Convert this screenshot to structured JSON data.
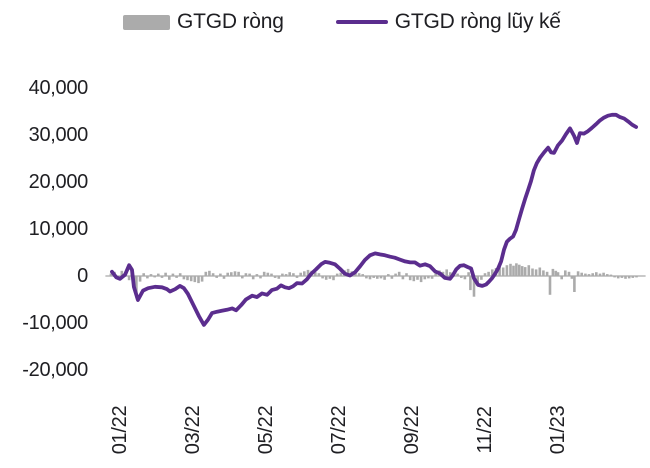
{
  "legend": {
    "bar_label": "GTGD ròng",
    "line_label": "GTGD ròng lũy kế"
  },
  "colors": {
    "bar": "#ABABAB",
    "line": "#5B2D8E",
    "zero_line": "#C9C9C9",
    "text": "#1F1F23"
  },
  "chart_data": {
    "type": "combo-bar-line",
    "title": "",
    "xlabel": "",
    "ylabel": "",
    "grid": false,
    "legend_position": "top",
    "ylim": [
      -20000,
      40000
    ],
    "y_ticks": [
      {
        "value": 40000,
        "label": "40,000"
      },
      {
        "value": 30000,
        "label": "30,000"
      },
      {
        "value": 20000,
        "label": "20,000"
      },
      {
        "value": 10000,
        "label": "10,000"
      },
      {
        "value": 0,
        "label": "0"
      },
      {
        "value": -10000,
        "label": "-10,000"
      },
      {
        "value": -20000,
        "label": "-20,000"
      }
    ],
    "x_ticks": [
      {
        "pos": 0,
        "label": "01/22"
      },
      {
        "pos": 2,
        "label": "03/22"
      },
      {
        "pos": 4,
        "label": "05/22"
      },
      {
        "pos": 6,
        "label": "07/22"
      },
      {
        "pos": 8,
        "label": "09/22"
      },
      {
        "pos": 10,
        "label": "11/22"
      },
      {
        "pos": 12,
        "label": "01/23"
      }
    ],
    "x_encoding": "months elapsed since 01/2022 tick",
    "xlim": [
      -0.4,
      14.4
    ],
    "series": [
      {
        "name": "GTGD ròng",
        "type": "bar",
        "color": "#ABABAB",
        "points": [
          [
            -0.25,
            500
          ],
          [
            -0.15,
            900
          ],
          [
            -0.05,
            -700
          ],
          [
            0.05,
            1100
          ],
          [
            0.15,
            800
          ],
          [
            0.25,
            -900
          ],
          [
            0.32,
            1500
          ],
          [
            0.38,
            -2600
          ],
          [
            0.45,
            -4600
          ],
          [
            0.55,
            -1200
          ],
          [
            0.65,
            600
          ],
          [
            0.75,
            -500
          ],
          [
            0.85,
            400
          ],
          [
            0.95,
            -300
          ],
          [
            1.05,
            500
          ],
          [
            1.15,
            -400
          ],
          [
            1.25,
            700
          ],
          [
            1.35,
            -800
          ],
          [
            1.45,
            500
          ],
          [
            1.55,
            -400
          ],
          [
            1.65,
            600
          ],
          [
            1.75,
            -700
          ],
          [
            1.85,
            -900
          ],
          [
            1.95,
            -1100
          ],
          [
            2.05,
            -1300
          ],
          [
            2.15,
            -1500
          ],
          [
            2.25,
            -1200
          ],
          [
            2.35,
            900
          ],
          [
            2.45,
            1100
          ],
          [
            2.55,
            600
          ],
          [
            2.65,
            -400
          ],
          [
            2.75,
            500
          ],
          [
            2.85,
            -600
          ],
          [
            2.95,
            700
          ],
          [
            3.05,
            800
          ],
          [
            3.15,
            1000
          ],
          [
            3.25,
            900
          ],
          [
            3.35,
            -500
          ],
          [
            3.45,
            600
          ],
          [
            3.55,
            500
          ],
          [
            3.65,
            -700
          ],
          [
            3.75,
            400
          ],
          [
            3.85,
            -500
          ],
          [
            3.95,
            900
          ],
          [
            4.05,
            700
          ],
          [
            4.15,
            500
          ],
          [
            4.25,
            -400
          ],
          [
            4.35,
            -600
          ],
          [
            4.45,
            500
          ],
          [
            4.55,
            400
          ],
          [
            4.65,
            800
          ],
          [
            4.75,
            600
          ],
          [
            4.85,
            -400
          ],
          [
            4.95,
            700
          ],
          [
            5.05,
            1000
          ],
          [
            5.15,
            1300
          ],
          [
            5.25,
            1100
          ],
          [
            5.35,
            800
          ],
          [
            5.45,
            600
          ],
          [
            5.55,
            -500
          ],
          [
            5.65,
            -800
          ],
          [
            5.75,
            -600
          ],
          [
            5.85,
            -900
          ],
          [
            5.95,
            500
          ],
          [
            6.05,
            700
          ],
          [
            6.15,
            1200
          ],
          [
            6.25,
            1500
          ],
          [
            6.35,
            1000
          ],
          [
            6.45,
            800
          ],
          [
            6.55,
            600
          ],
          [
            6.65,
            400
          ],
          [
            6.75,
            -500
          ],
          [
            6.85,
            -700
          ],
          [
            6.95,
            -400
          ],
          [
            7.05,
            -600
          ],
          [
            7.15,
            -500
          ],
          [
            7.25,
            -800
          ],
          [
            7.35,
            400
          ],
          [
            7.45,
            -600
          ],
          [
            7.55,
            500
          ],
          [
            7.65,
            900
          ],
          [
            7.75,
            -700
          ],
          [
            7.85,
            600
          ],
          [
            7.95,
            -900
          ],
          [
            8.05,
            -1100
          ],
          [
            8.15,
            -800
          ],
          [
            8.25,
            -1300
          ],
          [
            8.35,
            -700
          ],
          [
            8.45,
            -500
          ],
          [
            8.55,
            -600
          ],
          [
            8.65,
            700
          ],
          [
            8.75,
            1200
          ],
          [
            8.85,
            900
          ],
          [
            8.95,
            1400
          ],
          [
            9.05,
            800
          ],
          [
            9.15,
            600
          ],
          [
            9.25,
            500
          ],
          [
            9.35,
            -400
          ],
          [
            9.45,
            -700
          ],
          [
            9.55,
            800
          ],
          [
            9.6,
            -3000
          ],
          [
            9.7,
            -4400
          ],
          [
            9.8,
            -1500
          ],
          [
            9.9,
            -800
          ],
          [
            10.0,
            600
          ],
          [
            10.1,
            900
          ],
          [
            10.2,
            1400
          ],
          [
            10.3,
            1700
          ],
          [
            10.4,
            2000
          ],
          [
            10.5,
            1800
          ],
          [
            10.6,
            2300
          ],
          [
            10.7,
            2600
          ],
          [
            10.78,
            2200
          ],
          [
            10.86,
            2700
          ],
          [
            10.94,
            2400
          ],
          [
            11.02,
            2100
          ],
          [
            11.1,
            1900
          ],
          [
            11.2,
            2300
          ],
          [
            11.3,
            1600
          ],
          [
            11.4,
            1400
          ],
          [
            11.5,
            1800
          ],
          [
            11.6,
            1200
          ],
          [
            11.7,
            900
          ],
          [
            11.78,
            -4000
          ],
          [
            11.86,
            1500
          ],
          [
            11.94,
            1100
          ],
          [
            12.0,
            800
          ],
          [
            12.1,
            -700
          ],
          [
            12.2,
            1200
          ],
          [
            12.3,
            900
          ],
          [
            12.38,
            -600
          ],
          [
            12.45,
            -3400
          ],
          [
            12.55,
            1000
          ],
          [
            12.65,
            700
          ],
          [
            12.75,
            500
          ],
          [
            12.85,
            400
          ],
          [
            12.95,
            600
          ],
          [
            13.05,
            800
          ],
          [
            13.15,
            500
          ],
          [
            13.25,
            700
          ],
          [
            13.35,
            400
          ],
          [
            13.45,
            300
          ],
          [
            13.55,
            -300
          ],
          [
            13.65,
            -500
          ],
          [
            13.75,
            -400
          ],
          [
            13.85,
            -600
          ],
          [
            13.95,
            -500
          ],
          [
            14.05,
            -400
          ],
          [
            14.15,
            -300
          ]
        ]
      },
      {
        "name": "GTGD ròng lũy kế",
        "type": "line",
        "color": "#5B2D8E",
        "points": [
          [
            -0.22,
            900
          ],
          [
            -0.1,
            -300
          ],
          [
            0.0,
            -600
          ],
          [
            0.14,
            300
          ],
          [
            0.25,
            2300
          ],
          [
            0.33,
            1300
          ],
          [
            0.38,
            -2300
          ],
          [
            0.49,
            -5100
          ],
          [
            0.63,
            -3100
          ],
          [
            0.77,
            -2600
          ],
          [
            0.96,
            -2300
          ],
          [
            1.15,
            -2400
          ],
          [
            1.29,
            -2800
          ],
          [
            1.37,
            -3300
          ],
          [
            1.51,
            -2800
          ],
          [
            1.64,
            -2100
          ],
          [
            1.75,
            -2600
          ],
          [
            1.86,
            -3800
          ],
          [
            2.0,
            -6000
          ],
          [
            2.16,
            -8500
          ],
          [
            2.3,
            -10400
          ],
          [
            2.41,
            -9300
          ],
          [
            2.52,
            -7900
          ],
          [
            2.66,
            -7600
          ],
          [
            2.79,
            -7400
          ],
          [
            2.93,
            -7200
          ],
          [
            3.07,
            -6900
          ],
          [
            3.18,
            -7300
          ],
          [
            3.32,
            -6200
          ],
          [
            3.45,
            -5000
          ],
          [
            3.62,
            -4200
          ],
          [
            3.75,
            -4500
          ],
          [
            3.89,
            -3700
          ],
          [
            4.03,
            -4000
          ],
          [
            4.16,
            -3000
          ],
          [
            4.3,
            -2700
          ],
          [
            4.41,
            -2000
          ],
          [
            4.52,
            -2400
          ],
          [
            4.63,
            -2600
          ],
          [
            4.74,
            -2200
          ],
          [
            4.85,
            -1500
          ],
          [
            4.99,
            -1600
          ],
          [
            5.12,
            -700
          ],
          [
            5.23,
            400
          ],
          [
            5.37,
            1400
          ],
          [
            5.51,
            2500
          ],
          [
            5.62,
            3000
          ],
          [
            5.75,
            2800
          ],
          [
            5.89,
            2500
          ],
          [
            6.03,
            1500
          ],
          [
            6.16,
            500
          ],
          [
            6.3,
            100
          ],
          [
            6.44,
            800
          ],
          [
            6.58,
            2100
          ],
          [
            6.71,
            3400
          ],
          [
            6.85,
            4400
          ],
          [
            6.99,
            4800
          ],
          [
            7.12,
            4600
          ],
          [
            7.26,
            4400
          ],
          [
            7.4,
            4100
          ],
          [
            7.53,
            3900
          ],
          [
            7.67,
            3500
          ],
          [
            7.81,
            3100
          ],
          [
            7.95,
            2900
          ],
          [
            8.08,
            2900
          ],
          [
            8.22,
            2200
          ],
          [
            8.36,
            2500
          ],
          [
            8.49,
            2100
          ],
          [
            8.63,
            1000
          ],
          [
            8.77,
            500
          ],
          [
            8.9,
            -400
          ],
          [
            9.04,
            -600
          ],
          [
            9.12,
            200
          ],
          [
            9.21,
            1400
          ],
          [
            9.32,
            2200
          ],
          [
            9.42,
            2300
          ],
          [
            9.53,
            1900
          ],
          [
            9.62,
            1600
          ],
          [
            9.7,
            -500
          ],
          [
            9.81,
            -1900
          ],
          [
            9.92,
            -2100
          ],
          [
            10.03,
            -1800
          ],
          [
            10.11,
            -1200
          ],
          [
            10.19,
            -500
          ],
          [
            10.27,
            400
          ],
          [
            10.36,
            1600
          ],
          [
            10.44,
            3100
          ],
          [
            10.52,
            5600
          ],
          [
            10.6,
            7300
          ],
          [
            10.68,
            7900
          ],
          [
            10.77,
            8400
          ],
          [
            10.85,
            9800
          ],
          [
            10.93,
            12000
          ],
          [
            11.01,
            14200
          ],
          [
            11.1,
            16400
          ],
          [
            11.18,
            18300
          ],
          [
            11.26,
            20200
          ],
          [
            11.34,
            22500
          ],
          [
            11.42,
            24000
          ],
          [
            11.51,
            25200
          ],
          [
            11.62,
            26300
          ],
          [
            11.73,
            27300
          ],
          [
            11.81,
            26300
          ],
          [
            11.89,
            26200
          ],
          [
            12.0,
            27800
          ],
          [
            12.11,
            28800
          ],
          [
            12.22,
            30200
          ],
          [
            12.33,
            31400
          ],
          [
            12.44,
            29800
          ],
          [
            12.52,
            28300
          ],
          [
            12.6,
            30400
          ],
          [
            12.71,
            30300
          ],
          [
            12.82,
            30800
          ],
          [
            12.93,
            31500
          ],
          [
            13.04,
            32300
          ],
          [
            13.15,
            33100
          ],
          [
            13.26,
            33700
          ],
          [
            13.37,
            34100
          ],
          [
            13.48,
            34300
          ],
          [
            13.59,
            34300
          ],
          [
            13.7,
            33800
          ],
          [
            13.81,
            33500
          ],
          [
            13.92,
            32900
          ],
          [
            14.03,
            32200
          ],
          [
            14.14,
            31700
          ]
        ]
      }
    ]
  }
}
